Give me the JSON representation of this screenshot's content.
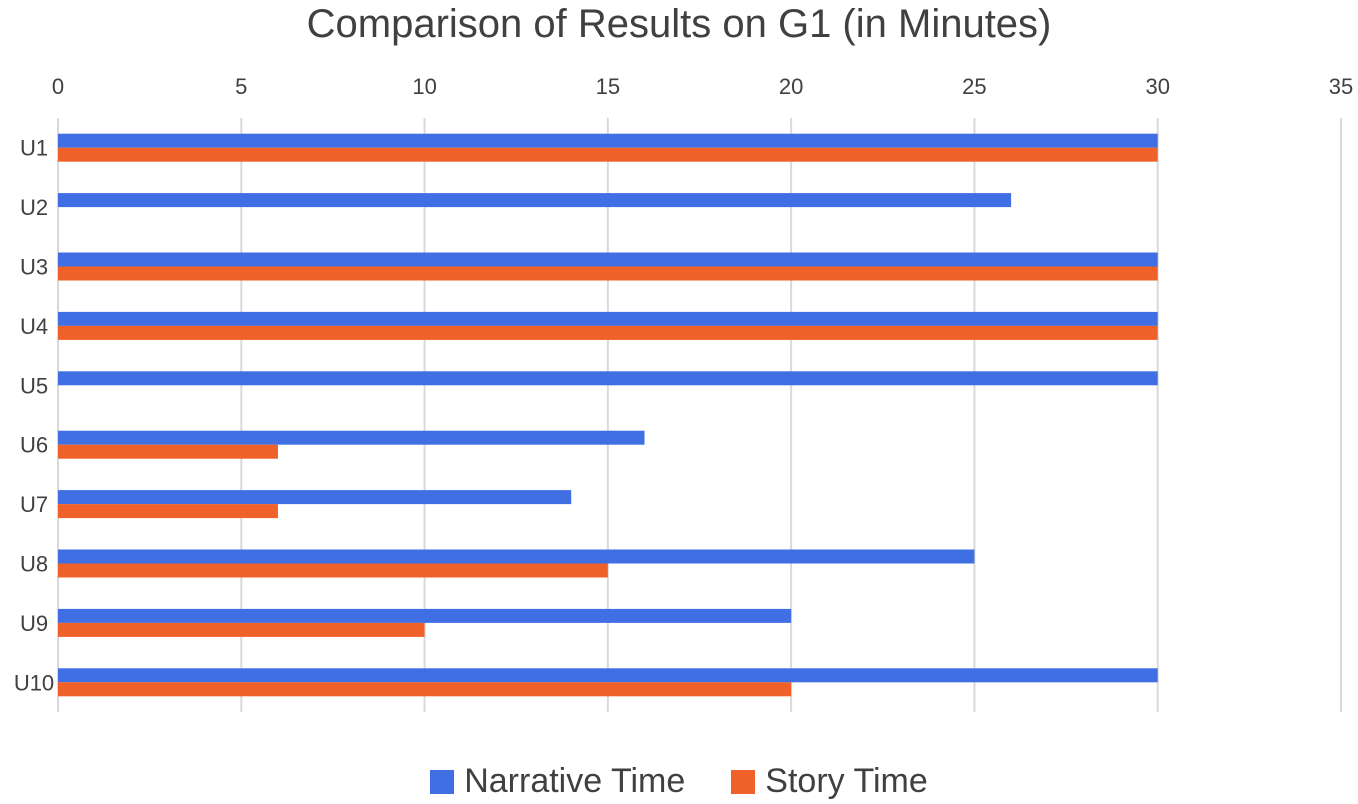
{
  "chart_data": {
    "type": "bar",
    "orientation": "horizontal",
    "title": "Comparison of Results on G1 (in Minutes)",
    "xlabel": "",
    "ylabel": "",
    "categories": [
      "U1",
      "U2",
      "U3",
      "U4",
      "U5",
      "U6",
      "U7",
      "U8",
      "U9",
      "U10"
    ],
    "series": [
      {
        "name": "Narrative Time",
        "color": "#3f6fe3",
        "values": [
          30,
          26,
          30,
          30,
          30,
          16,
          14,
          25,
          20,
          30
        ]
      },
      {
        "name": "Story Time",
        "color": "#f0612a",
        "values": [
          30,
          0,
          30,
          30,
          0,
          6,
          6,
          15,
          10,
          20
        ]
      }
    ],
    "xlim": [
      0,
      35
    ],
    "xticks": [
      0,
      5,
      10,
      15,
      20,
      25,
      30,
      35
    ],
    "x_axis_position": "top",
    "grid": true,
    "legend": "bottom"
  }
}
